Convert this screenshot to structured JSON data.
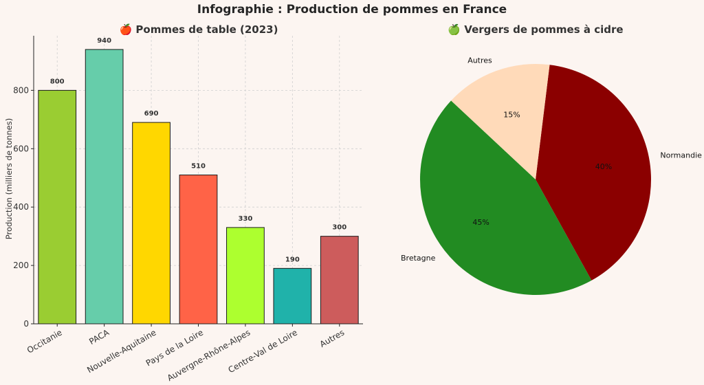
{
  "title": "Infographie : Production de pommes en France",
  "chart_data": [
    {
      "type": "bar",
      "title": "🍎 Pommes de table (2023)",
      "xlabel": "",
      "ylabel": "Production (milliers de tonnes)",
      "categories": [
        "Occitanie",
        "PACA",
        "Nouvelle-Aquitaine",
        "Pays de la Loire",
        "Auvergne-Rhône-Alpes",
        "Centre-Val de Loire",
        "Autres"
      ],
      "values": [
        800,
        940,
        690,
        510,
        330,
        190,
        300
      ],
      "colors": [
        "#9acd32",
        "#66cdaa",
        "#ffd700",
        "#ff6347",
        "#adff2f",
        "#20b2aa",
        "#cd5c5c"
      ],
      "ylim": [
        0,
        987
      ],
      "yticks": [
        0,
        200,
        400,
        600,
        800
      ],
      "grid": true,
      "data_labels": true
    },
    {
      "type": "pie",
      "title": "🍏 Vergers de pommes à cidre",
      "labels": [
        "Normandie",
        "Bretagne",
        "Autres"
      ],
      "values": [
        40,
        45,
        15
      ],
      "value_labels": [
        "40%",
        "45%",
        "15%"
      ],
      "colors": [
        "#8b0000",
        "#228b22",
        "#ffdab9"
      ]
    }
  ]
}
